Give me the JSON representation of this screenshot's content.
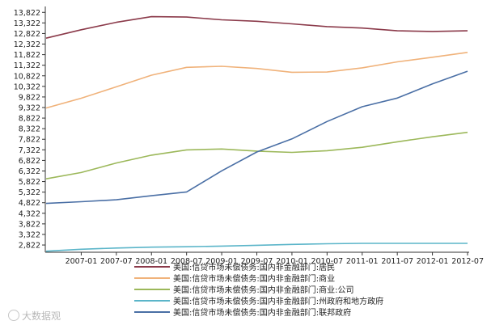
{
  "chart_data": {
    "type": "line",
    "title": "",
    "xlabel": "",
    "ylabel": "",
    "x": [
      "2006-07",
      "2007-01",
      "2007-07",
      "2008-01",
      "2008-07",
      "2009-01",
      "2009-07",
      "2010-01",
      "2010-07",
      "2011-01",
      "2011-07",
      "2012-01",
      "2012-07"
    ],
    "xticks": [
      "2007-01",
      "2007-07",
      "2008-01",
      "2008-07",
      "2009-01",
      "2009-07",
      "2010-01",
      "2010-07",
      "2011-01",
      "2011-07",
      "2012-01",
      "2012-07"
    ],
    "yticks": [
      "2,822",
      "3,322",
      "3,822",
      "4,322",
      "4,822",
      "5,322",
      "5,822",
      "6,322",
      "6,822",
      "7,322",
      "7,822",
      "8,322",
      "8,822",
      "9,322",
      "9,822",
      "10,322",
      "10,822",
      "11,322",
      "11,822",
      "12,322",
      "12,822",
      "13,322",
      "13,822"
    ],
    "ylim": [
      2480,
      14100
    ],
    "grid": false,
    "legend_position": "bottom",
    "series": [
      {
        "name": "美国:信贷市场未偿债务:国内非金融部门:居民",
        "color": "#8b3a4a",
        "values": [
          12600,
          13000,
          13350,
          13620,
          13600,
          13470,
          13400,
          13280,
          13150,
          13080,
          12950,
          12920,
          12950
        ]
      },
      {
        "name": "美国:信贷市场未偿债务:国内非金融部门:商业",
        "color": "#f0b27a",
        "values": [
          9300,
          9760,
          10300,
          10850,
          11220,
          11270,
          11170,
          10990,
          11000,
          11200,
          11480,
          11700,
          11930
        ]
      },
      {
        "name": "美国:信贷市场未偿债务:国内非金融部门:商业:公司",
        "color": "#9cb85a",
        "values": [
          5950,
          6250,
          6700,
          7070,
          7320,
          7360,
          7260,
          7200,
          7280,
          7440,
          7700,
          7940,
          8150
        ]
      },
      {
        "name": "美国:信贷市场未偿债务:国内非金融部门:州政府和地方政府",
        "color": "#5bb5c9",
        "values": [
          2530,
          2620,
          2680,
          2720,
          2740,
          2770,
          2810,
          2850,
          2880,
          2900,
          2900,
          2900,
          2900
        ]
      },
      {
        "name": "美国:信贷市场未偿债务:国内非金融部门:联邦政府",
        "color": "#4a6fa5",
        "values": [
          4790,
          4870,
          4960,
          5150,
          5330,
          6330,
          7220,
          7840,
          8660,
          9360,
          9770,
          10440,
          11040
        ]
      }
    ]
  },
  "watermark": "大数据观"
}
